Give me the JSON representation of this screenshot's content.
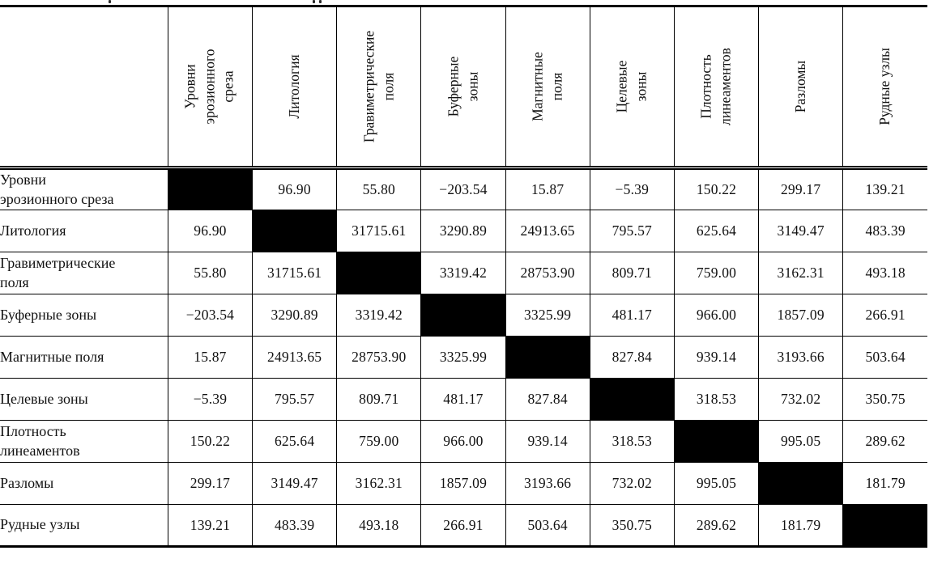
{
  "colors": {
    "background": "#ffffff",
    "grid_line": "#000000",
    "text": "#111111",
    "diagonal_fill": "#000000"
  },
  "table": {
    "corner_label": "",
    "columns": [
      "Уровни\nэрозионного\nсреза",
      "Литология",
      "Гравиметрические\nполя",
      "Буферные\nзоны",
      "Магнитные\nполя",
      "Целевые\nзоны",
      "Плотность\nлинеаментов",
      "Разломы",
      "Рудные узлы"
    ],
    "rows": [
      {
        "label": "Уровни\nэрозионного среза",
        "values": [
          null,
          "96.90",
          "55.80",
          "−203.54",
          "15.87",
          "−5.39",
          "150.22",
          "299.17",
          "139.21"
        ]
      },
      {
        "label": "Литология",
        "values": [
          "96.90",
          null,
          "31715.61",
          "3290.89",
          "24913.65",
          "795.57",
          "625.64",
          "3149.47",
          "483.39"
        ]
      },
      {
        "label": "Гравиметрические\nполя",
        "values": [
          "55.80",
          "31715.61",
          null,
          "3319.42",
          "28753.90",
          "809.71",
          "759.00",
          "3162.31",
          "493.18"
        ]
      },
      {
        "label": "Буферные зоны",
        "values": [
          "−203.54",
          "3290.89",
          "3319.42",
          null,
          "3325.99",
          "481.17",
          "966.00",
          "1857.09",
          "266.91"
        ]
      },
      {
        "label": "Магнитные поля",
        "values": [
          "15.87",
          "24913.65",
          "28753.90",
          "3325.99",
          null,
          "827.84",
          "939.14",
          "3193.66",
          "503.64"
        ]
      },
      {
        "label": "Целевые зоны",
        "values": [
          "−5.39",
          "795.57",
          "809.71",
          "481.17",
          "827.84",
          null,
          "318.53",
          "732.02",
          "350.75"
        ]
      },
      {
        "label": "Плотность\nлинеаментов",
        "values": [
          "150.22",
          "625.64",
          "759.00",
          "966.00",
          "939.14",
          "318.53",
          null,
          "995.05",
          "289.62"
        ]
      },
      {
        "label": "Разломы",
        "values": [
          "299.17",
          "3149.47",
          "3162.31",
          "1857.09",
          "3193.66",
          "732.02",
          "995.05",
          null,
          "181.79"
        ]
      },
      {
        "label": "Рудные узлы",
        "values": [
          "139.21",
          "483.39",
          "493.18",
          "266.91",
          "503.64",
          "350.75",
          "289.62",
          "181.79",
          null
        ]
      }
    ]
  }
}
